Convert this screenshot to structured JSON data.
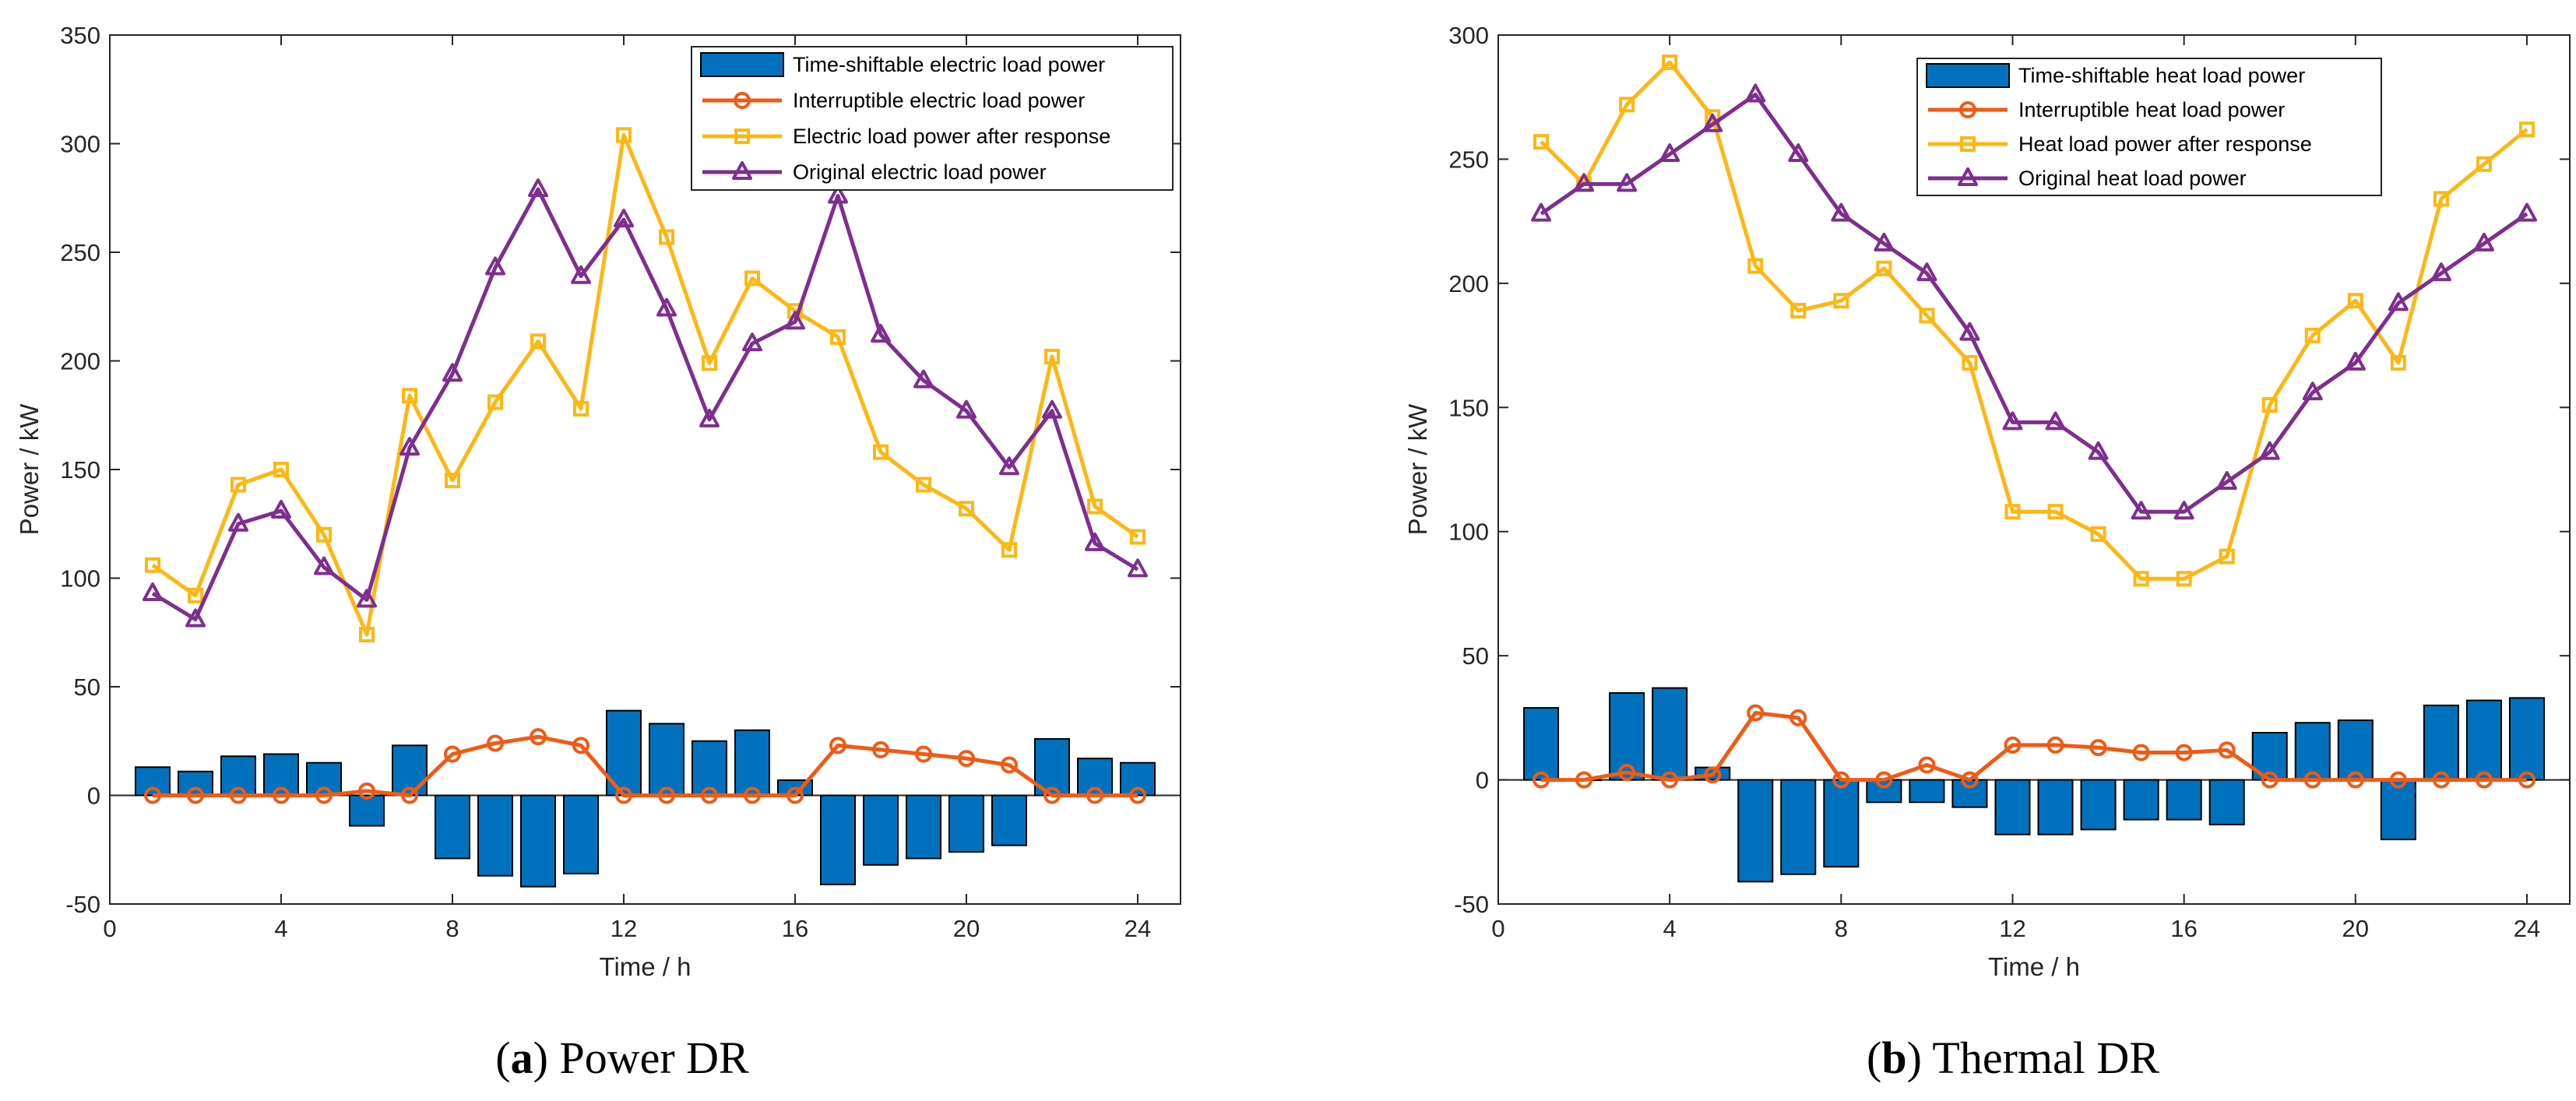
{
  "colors": {
    "bar": "#0072BD",
    "interruptible": "#F05A14",
    "after_response": "#FDB714",
    "original": "#7E2F8E",
    "axis": "#262626"
  },
  "chart_data": [
    {
      "type": "bar+line",
      "panel_label": "a",
      "caption": "Power DR",
      "xlabel": "Time / h",
      "ylabel": "Power / kW",
      "xlim": [
        0,
        25
      ],
      "ylim": [
        -50,
        350
      ],
      "xticks": [
        0,
        4,
        8,
        12,
        16,
        20,
        24
      ],
      "yticks": [
        -50,
        0,
        50,
        100,
        150,
        200,
        250,
        300,
        350
      ],
      "legend": {
        "placement": "top-right",
        "entries": [
          "Time-shiftable electric load  power",
          "Interruptible electric load power",
          "Electric load power after response",
          "Original electric load power"
        ]
      },
      "x": [
        1,
        2,
        3,
        4,
        5,
        6,
        7,
        8,
        9,
        10,
        11,
        12,
        13,
        14,
        15,
        16,
        17,
        18,
        19,
        20,
        21,
        22,
        23,
        24
      ],
      "bars": {
        "name": "Time-shiftable electric load  power",
        "values": [
          13,
          11,
          18,
          19,
          15,
          -14,
          23,
          -29,
          -37,
          -42,
          -36,
          39,
          33,
          25,
          30,
          7,
          -41,
          -32,
          -29,
          -26,
          -23,
          26,
          17,
          15
        ]
      },
      "series": [
        {
          "name": "Interruptible electric load power",
          "marker": "circle",
          "values": [
            0,
            0,
            0,
            0,
            0,
            2,
            0,
            19,
            24,
            27,
            23,
            0,
            0,
            0,
            0,
            0,
            23,
            21,
            19,
            17,
            14,
            0,
            0,
            0
          ]
        },
        {
          "name": "Electric load power after response",
          "marker": "square",
          "values": [
            106,
            92,
            143,
            150,
            120,
            74,
            184,
            145,
            181,
            209,
            178,
            304,
            257,
            199,
            238,
            223,
            211,
            158,
            143,
            132,
            113,
            202,
            133,
            119
          ]
        },
        {
          "name": "Original electric load power",
          "marker": "triangle",
          "values": [
            93,
            81,
            125,
            131,
            105,
            90,
            160,
            194,
            243,
            279,
            239,
            265,
            224,
            173,
            208,
            218,
            276,
            212,
            191,
            177,
            151,
            177,
            116,
            104
          ]
        }
      ]
    },
    {
      "type": "bar+line",
      "panel_label": "b",
      "caption": "Thermal DR",
      "xlabel": "Time / h",
      "ylabel": "Power / kW",
      "xlim": [
        0,
        25
      ],
      "ylim": [
        -50,
        300
      ],
      "xticks": [
        0,
        4,
        8,
        12,
        16,
        20,
        24
      ],
      "yticks": [
        -50,
        0,
        50,
        100,
        150,
        200,
        250,
        300
      ],
      "legend": {
        "placement": "top-right",
        "entries": [
          "Time-shiftable heat load  power",
          "Interruptible heat load power",
          "Heat load power after response",
          "Original heat load power"
        ]
      },
      "x": [
        1,
        2,
        3,
        4,
        5,
        6,
        7,
        8,
        9,
        10,
        11,
        12,
        13,
        14,
        15,
        16,
        17,
        18,
        19,
        20,
        21,
        22,
        23,
        24
      ],
      "bars": {
        "name": "Time-shiftable heat load  power",
        "values": [
          29,
          0,
          35,
          37,
          5,
          -41,
          -38,
          -35,
          -9,
          -9,
          -11,
          -22,
          -22,
          -20,
          -16,
          -16,
          -18,
          19,
          23,
          24,
          -24,
          30,
          32,
          33
        ]
      },
      "series": [
        {
          "name": "Interruptible heat load power",
          "marker": "circle",
          "values": [
            0,
            0,
            3,
            0,
            2,
            27,
            25,
            0,
            0,
            6,
            0,
            14,
            14,
            13,
            11,
            11,
            12,
            0,
            0,
            0,
            0,
            0,
            0,
            0
          ]
        },
        {
          "name": "Heat load power after response",
          "marker": "square",
          "values": [
            257,
            240,
            272,
            289,
            267,
            207,
            189,
            193,
            206,
            187,
            168,
            108,
            108,
            99,
            81,
            81,
            90,
            151,
            179,
            193,
            168,
            234,
            248,
            262
          ]
        },
        {
          "name": "Original heat load power",
          "marker": "triangle",
          "values": [
            228,
            240,
            240,
            252,
            264,
            276,
            252,
            228,
            216,
            204,
            180,
            144,
            144,
            132,
            108,
            108,
            120,
            132,
            156,
            168,
            192,
            204,
            216,
            228
          ]
        }
      ]
    }
  ]
}
